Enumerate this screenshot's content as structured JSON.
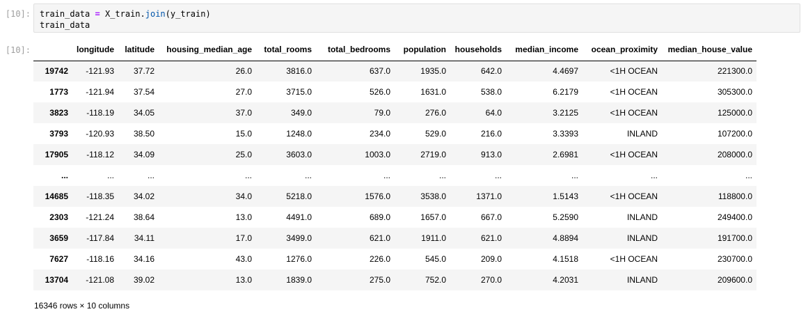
{
  "cell": {
    "in_prompt": "[10]:",
    "out_prompt": "[10]:",
    "code": {
      "line1_var": "train_data",
      "line1_op": "=",
      "line1_obj": "X_train.",
      "line1_method": "join",
      "line1_args": "(y_train)",
      "line2": "train_data"
    }
  },
  "table": {
    "index_header": "",
    "columns": [
      "longitude",
      "latitude",
      "housing_median_age",
      "total_rooms",
      "total_bedrooms",
      "population",
      "households",
      "median_income",
      "ocean_proximity",
      "median_house_value"
    ],
    "rows": [
      {
        "index": "19742",
        "cells": [
          "-121.93",
          "37.72",
          "26.0",
          "3816.0",
          "637.0",
          "1935.0",
          "642.0",
          "4.4697",
          "<1H OCEAN",
          "221300.0"
        ]
      },
      {
        "index": "1773",
        "cells": [
          "-121.94",
          "37.54",
          "27.0",
          "3715.0",
          "526.0",
          "1631.0",
          "538.0",
          "6.2179",
          "<1H OCEAN",
          "305300.0"
        ]
      },
      {
        "index": "3823",
        "cells": [
          "-118.19",
          "34.05",
          "37.0",
          "349.0",
          "79.0",
          "276.0",
          "64.0",
          "3.2125",
          "<1H OCEAN",
          "125000.0"
        ]
      },
      {
        "index": "3793",
        "cells": [
          "-120.93",
          "38.50",
          "15.0",
          "1248.0",
          "234.0",
          "529.0",
          "216.0",
          "3.3393",
          "INLAND",
          "107200.0"
        ]
      },
      {
        "index": "17905",
        "cells": [
          "-118.12",
          "34.09",
          "25.0",
          "3603.0",
          "1003.0",
          "2719.0",
          "913.0",
          "2.6981",
          "<1H OCEAN",
          "208000.0"
        ]
      },
      {
        "index": "...",
        "cells": [
          "...",
          "...",
          "...",
          "...",
          "...",
          "...",
          "...",
          "...",
          "...",
          "..."
        ]
      },
      {
        "index": "14685",
        "cells": [
          "-118.35",
          "34.02",
          "34.0",
          "5218.0",
          "1576.0",
          "3538.0",
          "1371.0",
          "1.5143",
          "<1H OCEAN",
          "118800.0"
        ]
      },
      {
        "index": "2303",
        "cells": [
          "-121.24",
          "38.64",
          "13.0",
          "4491.0",
          "689.0",
          "1657.0",
          "667.0",
          "5.2590",
          "INLAND",
          "249400.0"
        ]
      },
      {
        "index": "3659",
        "cells": [
          "-117.84",
          "34.11",
          "17.0",
          "3499.0",
          "621.0",
          "1911.0",
          "621.0",
          "4.8894",
          "INLAND",
          "191700.0"
        ]
      },
      {
        "index": "7627",
        "cells": [
          "-118.16",
          "34.16",
          "43.0",
          "1276.0",
          "226.0",
          "545.0",
          "209.0",
          "4.1518",
          "<1H OCEAN",
          "230700.0"
        ]
      },
      {
        "index": "13704",
        "cells": [
          "-121.08",
          "39.02",
          "13.0",
          "1839.0",
          "275.0",
          "752.0",
          "270.0",
          "4.2031",
          "INLAND",
          "209600.0"
        ]
      }
    ],
    "shape_text": "16346 rows × 10 columns"
  }
}
